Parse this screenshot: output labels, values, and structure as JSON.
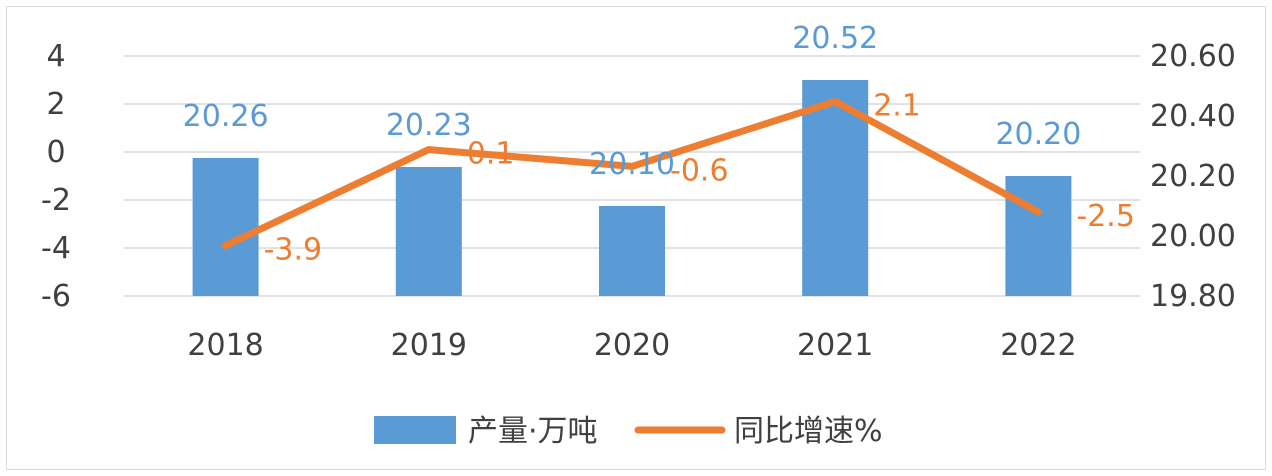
{
  "chart_data": {
    "type": "bar",
    "categories": [
      "2018",
      "2019",
      "2020",
      "2021",
      "2022"
    ],
    "series": [
      {
        "name": "产量·万吨",
        "kind": "bar",
        "axis": "right",
        "color": "#5b9bd5",
        "values": [
          20.26,
          20.23,
          20.1,
          20.52,
          20.2
        ],
        "labels": [
          "20.26",
          "20.23",
          "20.10",
          "20.52",
          "20.20"
        ]
      },
      {
        "name": "同比增速%",
        "kind": "line",
        "axis": "left",
        "color": "#ed7d31",
        "values": [
          -3.9,
          0.1,
          -0.6,
          2.1,
          -2.5
        ],
        "labels": [
          "-3.9",
          "0.1",
          "-0.6",
          "2.1",
          "-2.5"
        ]
      }
    ],
    "left_axis": {
      "ylim": [
        -6,
        4
      ],
      "ticks": [
        "4",
        "2",
        "0",
        "-2",
        "-4",
        "-6"
      ],
      "tick_values": [
        4,
        2,
        0,
        -2,
        -4,
        -6
      ]
    },
    "right_axis": {
      "ylim": [
        19.8,
        20.6
      ],
      "ticks": [
        "20.60",
        "20.40",
        "20.20",
        "20.00",
        "19.80"
      ],
      "tick_values": [
        20.6,
        20.4,
        20.2,
        20.0,
        19.8
      ]
    },
    "grid": true,
    "legend": "bottom",
    "legend_items": [
      "产量·万吨",
      "同比增速%"
    ]
  }
}
